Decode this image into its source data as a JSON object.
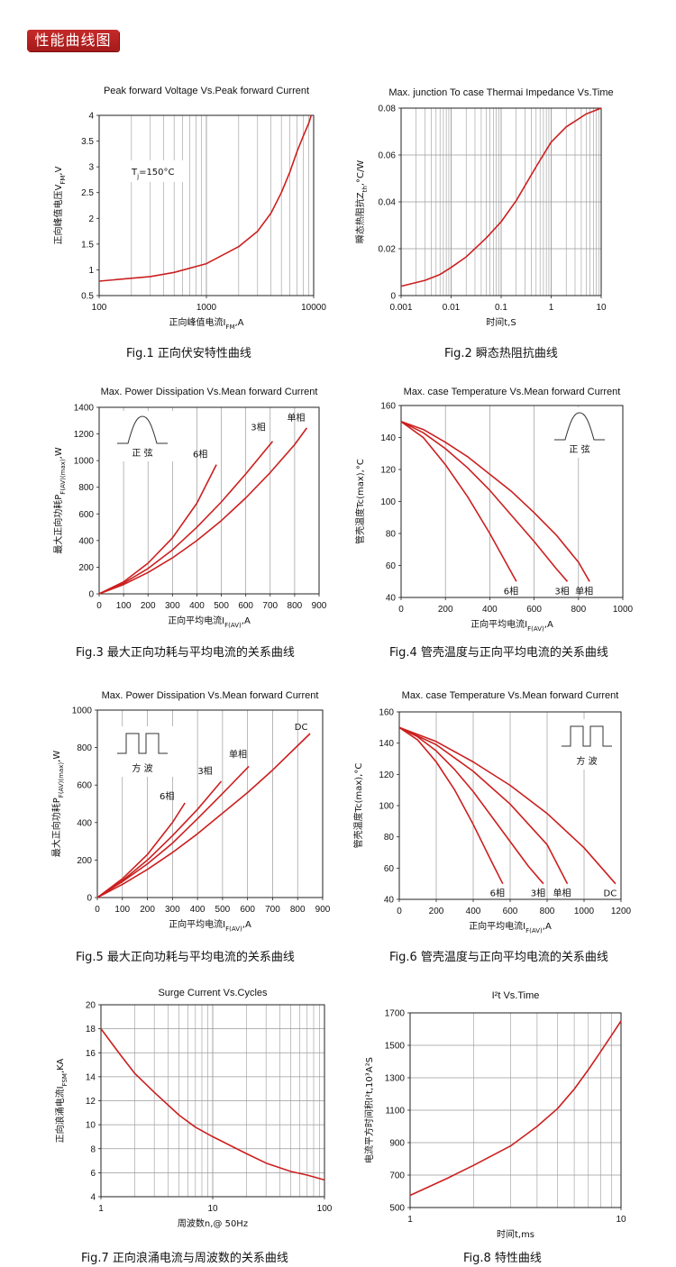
{
  "header": {
    "title": "性能曲线图"
  },
  "chart_data": [
    {
      "id": "fig1",
      "type": "line",
      "title": "Peak forward Voltage Vs.Peak forward Current",
      "xlabel": "正向峰值电流I_FM,A",
      "ylabel": "正向峰值电压V_FM,V",
      "xscale": "log",
      "xlim": [
        100,
        10000
      ],
      "ylim": [
        0.5,
        4
      ],
      "xticks": [
        "100",
        "1000",
        "10000"
      ],
      "yticks": [
        "0.5",
        "1",
        "1.5",
        "2",
        "2.5",
        "3",
        "3.5",
        "4"
      ],
      "grid": true,
      "grid_x": "log",
      "grid_y": false,
      "annotation": "Tj=150°C",
      "caption": "Fig.1  正向伏安特性曲线",
      "series": [
        {
          "x": [
            100,
            300,
            500,
            1000,
            2000,
            3000,
            4000,
            5000,
            6000,
            7000,
            8000,
            9000,
            9500
          ],
          "y": [
            0.78,
            0.87,
            0.95,
            1.12,
            1.45,
            1.75,
            2.1,
            2.5,
            2.9,
            3.3,
            3.6,
            3.85,
            4.0
          ]
        }
      ]
    },
    {
      "id": "fig2",
      "type": "line",
      "title": "Max. junction To case Thermai Impedance Vs.Time",
      "xlabel": "时间t,S",
      "ylabel": "瞬态热阻抗Z_th,°C/W",
      "xscale": "log",
      "xlim": [
        0.001,
        10
      ],
      "ylim": [
        0,
        0.08
      ],
      "xticks": [
        "0.001",
        "0.01",
        "0.1",
        "1",
        "10"
      ],
      "yticks": [
        "0",
        "0.02",
        "0.04",
        "0.06",
        "0.08"
      ],
      "grid": true,
      "grid_x": "log",
      "grid_y": true,
      "caption": "Fig.2  瞬态热阻抗曲线",
      "series": [
        {
          "x": [
            0.001,
            0.003,
            0.006,
            0.01,
            0.02,
            0.05,
            0.1,
            0.2,
            0.5,
            1,
            2,
            5,
            10
          ],
          "y": [
            0.004,
            0.0065,
            0.009,
            0.012,
            0.0165,
            0.0245,
            0.0315,
            0.0405,
            0.055,
            0.0655,
            0.072,
            0.0775,
            0.08
          ]
        }
      ]
    },
    {
      "id": "fig3",
      "type": "line",
      "title": "Max. Power Dissipation Vs.Mean forward Current",
      "xlabel": "正向平均电流I_F(AV),A",
      "ylabel": "最大正向功耗P_F(AV)(max),W",
      "xlim": [
        0,
        900
      ],
      "ylim": [
        0,
        1400
      ],
      "xticks": [
        "0",
        "100",
        "200",
        "300",
        "400",
        "500",
        "600",
        "700",
        "800",
        "900"
      ],
      "yticks": [
        "0",
        "200",
        "400",
        "600",
        "800",
        "1000",
        "1200",
        "1400"
      ],
      "grid": true,
      "grid_x": "linear",
      "grid_y": false,
      "inset": {
        "shape": "sine",
        "label": "正  弦"
      },
      "caption": "Fig.3  最大正向功耗与平均电流的关系曲线",
      "series": [
        {
          "name": "6相",
          "x": [
            0,
            100,
            200,
            300,
            400,
            480
          ],
          "y": [
            0,
            90,
            230,
            420,
            680,
            970
          ]
        },
        {
          "name": "3相",
          "x": [
            0,
            100,
            200,
            300,
            400,
            500,
            600,
            710
          ],
          "y": [
            0,
            80,
            190,
            330,
            500,
            690,
            900,
            1145
          ]
        },
        {
          "name": "单相",
          "x": [
            0,
            100,
            200,
            300,
            400,
            500,
            600,
            700,
            800,
            850
          ],
          "y": [
            0,
            70,
            160,
            270,
            400,
            550,
            720,
            910,
            1120,
            1245
          ]
        }
      ]
    },
    {
      "id": "fig4",
      "type": "line",
      "title": "Max. case Temperature Vs.Mean forward Current",
      "xlabel": "正向平均电流I_F(AV),A",
      "ylabel": "管壳温度Tc(max),°C",
      "xlim": [
        0,
        1000
      ],
      "ylim": [
        40,
        160
      ],
      "xticks": [
        "0",
        "200",
        "400",
        "600",
        "800",
        "1000"
      ],
      "yticks": [
        "40",
        "60",
        "80",
        "100",
        "120",
        "140",
        "160"
      ],
      "grid": true,
      "grid_x": "linear",
      "grid_y": false,
      "inset": {
        "shape": "sine",
        "label": "正  弦"
      },
      "caption": "Fig.4  管壳温度与正向平均电流的关系曲线",
      "series": [
        {
          "name": "6相",
          "x": [
            0,
            100,
            200,
            300,
            400,
            500,
            520
          ],
          "y": [
            150,
            140,
            123,
            103,
            80,
            55,
            50
          ]
        },
        {
          "name": "3相",
          "x": [
            0,
            100,
            200,
            300,
            400,
            500,
            600,
            700,
            750
          ],
          "y": [
            150,
            143,
            133,
            121,
            107,
            91,
            75,
            58,
            50
          ]
        },
        {
          "name": "单相",
          "x": [
            0,
            100,
            200,
            300,
            400,
            500,
            600,
            700,
            800,
            850
          ],
          "y": [
            150,
            145,
            137,
            128,
            117,
            106,
            93,
            79,
            62,
            50
          ]
        }
      ]
    },
    {
      "id": "fig5",
      "type": "line",
      "title": "Max. Power Dissipation Vs.Mean forward Current",
      "xlabel": "正向平均电流I_F(AV),A",
      "ylabel": "最大正向功耗P_F(AV)(max),W",
      "xlim": [
        0,
        900
      ],
      "ylim": [
        0,
        1000
      ],
      "xticks": [
        "0",
        "100",
        "200",
        "300",
        "400",
        "500",
        "600",
        "700",
        "800",
        "900"
      ],
      "yticks": [
        "0",
        "200",
        "400",
        "600",
        "800",
        "1000"
      ],
      "grid": true,
      "grid_x": "linear",
      "grid_y": false,
      "inset": {
        "shape": "square",
        "label": "方  波"
      },
      "caption": "Fig.5  最大正向功耗与平均电流的关系曲线",
      "series": [
        {
          "name": "6相",
          "x": [
            0,
            100,
            200,
            300,
            350
          ],
          "y": [
            0,
            100,
            230,
            400,
            505
          ]
        },
        {
          "name": "3相",
          "x": [
            0,
            100,
            200,
            300,
            400,
            495
          ],
          "y": [
            0,
            90,
            200,
            330,
            470,
            620
          ]
        },
        {
          "name": "单相",
          "x": [
            0,
            100,
            200,
            300,
            400,
            500,
            605
          ],
          "y": [
            0,
            85,
            180,
            290,
            420,
            555,
            700
          ]
        },
        {
          "name": "DC",
          "x": [
            0,
            100,
            200,
            300,
            400,
            500,
            600,
            700,
            800,
            850
          ],
          "y": [
            0,
            70,
            150,
            240,
            340,
            450,
            560,
            680,
            810,
            875
          ]
        }
      ]
    },
    {
      "id": "fig6",
      "type": "line",
      "title": "Max. case Temperature Vs.Mean forward Current",
      "xlabel": "正向平均电流I_F(AV),A",
      "ylabel": "管壳温度Tc(max),°C",
      "xlim": [
        0,
        1200
      ],
      "ylim": [
        40,
        160
      ],
      "xticks": [
        "0",
        "200",
        "400",
        "600",
        "800",
        "1000",
        "1200"
      ],
      "yticks": [
        "40",
        "60",
        "80",
        "100",
        "120",
        "140",
        "160"
      ],
      "grid": true,
      "grid_x": "linear",
      "grid_y": false,
      "inset": {
        "shape": "square",
        "label": "方  波"
      },
      "caption": "Fig.6  管壳温度与正向平均电流的关系曲线",
      "series": [
        {
          "name": "6相",
          "x": [
            0,
            100,
            200,
            300,
            400,
            500,
            560
          ],
          "y": [
            150,
            142,
            128,
            110,
            88,
            64,
            50
          ]
        },
        {
          "name": "3相",
          "x": [
            0,
            100,
            200,
            300,
            400,
            500,
            600,
            700,
            780
          ],
          "y": [
            150,
            144,
            135,
            123,
            109,
            93,
            77,
            61,
            50
          ]
        },
        {
          "name": "单相",
          "x": [
            0,
            200,
            400,
            600,
            800,
            910
          ],
          "y": [
            150,
            139,
            122,
            101,
            75,
            50
          ]
        },
        {
          "name": "DC",
          "x": [
            0,
            200,
            400,
            600,
            800,
            1000,
            1170
          ],
          "y": [
            150,
            141,
            128,
            113,
            95,
            73,
            50
          ]
        }
      ]
    },
    {
      "id": "fig7",
      "type": "line",
      "title": "Surge Current Vs.Cycles",
      "xlabel": "周波数n,@ 50Hz",
      "ylabel": "正向浪涌电流I_FSM,KA",
      "xscale": "log",
      "xlim": [
        1,
        100
      ],
      "ylim": [
        4,
        20
      ],
      "xticks": [
        "1",
        "10",
        "100"
      ],
      "yticks": [
        "4",
        "6",
        "8",
        "10",
        "12",
        "14",
        "16",
        "18",
        "20"
      ],
      "grid": true,
      "grid_x": "log",
      "grid_y": true,
      "caption": "Fig.7  正向浪涌电流与周波数的关系曲线",
      "series": [
        {
          "x": [
            1,
            1.5,
            2,
            3,
            5,
            7,
            10,
            20,
            30,
            50,
            70,
            100
          ],
          "y": [
            18,
            15.8,
            14.3,
            12.7,
            10.8,
            9.8,
            9.0,
            7.6,
            6.8,
            6.1,
            5.8,
            5.4
          ]
        }
      ]
    },
    {
      "id": "fig8",
      "type": "line",
      "title": "I²t  Vs.Time",
      "xlabel": "时间t,ms",
      "ylabel": "电流平方时间积I²t,10³A²S",
      "xscale": "log",
      "xlim": [
        1,
        10
      ],
      "ylim": [
        500,
        1700
      ],
      "xticks": [
        "1",
        "10"
      ],
      "yticks": [
        "500",
        "700",
        "900",
        "1100",
        "1300",
        "1500",
        "1700"
      ],
      "grid": true,
      "grid_x": "log",
      "grid_y": true,
      "caption": "Fig.8  特性曲线",
      "series": [
        {
          "x": [
            1,
            1.5,
            2,
            3,
            4,
            5,
            6,
            7,
            8,
            9,
            10
          ],
          "y": [
            575,
            680,
            760,
            880,
            1000,
            1110,
            1230,
            1350,
            1460,
            1560,
            1650
          ]
        }
      ]
    }
  ],
  "colors": {
    "curve": "#cc1f1f",
    "badge": "#b82020"
  }
}
